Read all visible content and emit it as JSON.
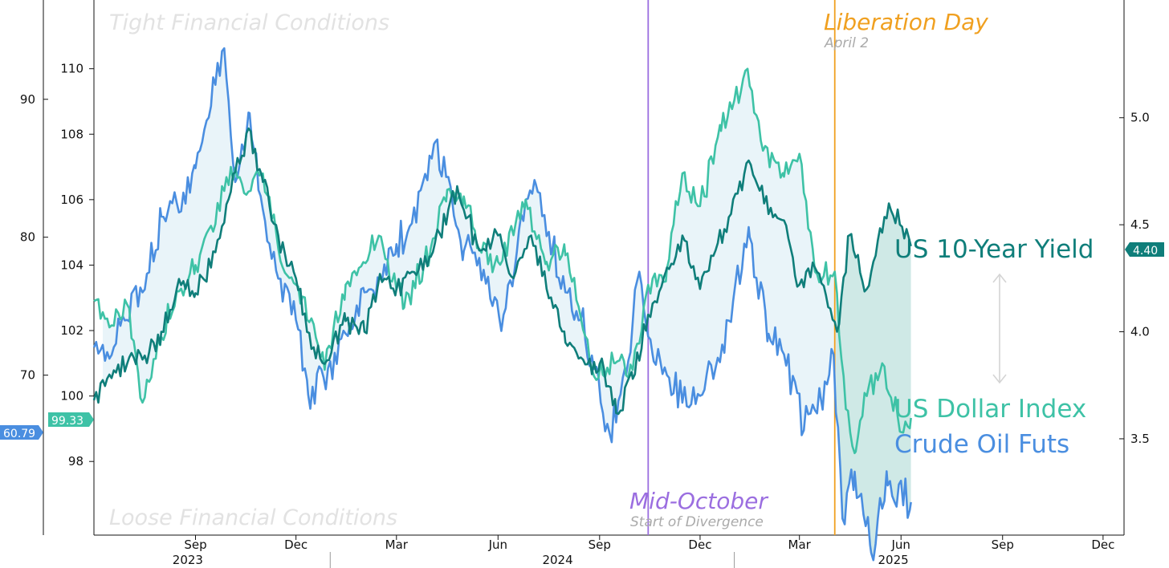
{
  "chart_data": {
    "type": "line",
    "title": "",
    "x_range": [
      "2023-06-01",
      "2025-12-20"
    ],
    "axes": {
      "left_outer": {
        "ticks": [
          70,
          80,
          90
        ],
        "ylim": [
          58.4,
          97.2
        ],
        "tick_labels": [
          "70",
          "80",
          "90"
        ]
      },
      "left_inner": {
        "ticks": [
          98,
          100,
          102,
          104,
          106,
          108,
          110
        ],
        "ylim": [
          95.75,
          112.1
        ],
        "tick_labels": [
          "98",
          "100",
          "102",
          "104",
          "106",
          "108",
          "110"
        ]
      },
      "right": {
        "ticks": [
          3.5,
          4.0,
          4.5,
          5.0
        ],
        "ylim": [
          3.05,
          5.55
        ],
        "tick_labels": [
          "3.5",
          "4.0",
          "4.5",
          "5.0"
        ]
      }
    },
    "x_months": [
      {
        "date": "2023-09-01",
        "label": "Sep"
      },
      {
        "date": "2023-12-01",
        "label": "Dec"
      },
      {
        "date": "2024-03-01",
        "label": "Mar"
      },
      {
        "date": "2024-06-01",
        "label": "Jun"
      },
      {
        "date": "2024-09-01",
        "label": "Sep"
      },
      {
        "date": "2024-12-01",
        "label": "Dec"
      },
      {
        "date": "2025-03-01",
        "label": "Mar"
      },
      {
        "date": "2025-06-01",
        "label": "Jun"
      },
      {
        "date": "2025-09-01",
        "label": "Sep"
      },
      {
        "date": "2025-12-01",
        "label": "Dec"
      }
    ],
    "x_years": [
      {
        "date": "2023-08-25",
        "label": "2023"
      },
      {
        "date": "2024-07-25",
        "label": "2024"
      },
      {
        "date": "2025-05-25",
        "label": "2025"
      }
    ],
    "year_separators": [
      "2024-01-01",
      "2025-01-01"
    ],
    "corner_labels": {
      "top": "Tight Financial Conditions",
      "bottom": "Loose Financial Conditions"
    },
    "events": [
      {
        "date": "2024-10-15",
        "title": "Mid-October",
        "subtitle": "Start of Divergence",
        "color": "#9b6ee0",
        "placement": "bottom"
      },
      {
        "date": "2025-04-02",
        "title": "Liberation Day",
        "subtitle": "April 2",
        "color": "#f0a020",
        "placement": "top"
      }
    ],
    "series": [
      {
        "name": "US 10-Year Yield",
        "axis": "right",
        "color": "#0f7e7a",
        "last": "4.40",
        "points": [
          [
            "2023-06-01",
            3.68
          ],
          [
            "2023-06-15",
            3.8
          ],
          [
            "2023-07-01",
            3.85
          ],
          [
            "2023-07-15",
            3.87
          ],
          [
            "2023-08-01",
            4.0
          ],
          [
            "2023-08-15",
            4.2
          ],
          [
            "2023-09-01",
            4.18
          ],
          [
            "2023-09-15",
            4.3
          ],
          [
            "2023-10-01",
            4.62
          ],
          [
            "2023-10-19",
            4.95
          ],
          [
            "2023-11-01",
            4.7
          ],
          [
            "2023-11-15",
            4.45
          ],
          [
            "2023-12-01",
            4.25
          ],
          [
            "2023-12-15",
            3.92
          ],
          [
            "2023-12-27",
            3.85
          ],
          [
            "2024-01-15",
            4.05
          ],
          [
            "2024-02-01",
            4.0
          ],
          [
            "2024-02-15",
            4.27
          ],
          [
            "2024-03-01",
            4.2
          ],
          [
            "2024-03-15",
            4.28
          ],
          [
            "2024-04-01",
            4.35
          ],
          [
            "2024-04-25",
            4.68
          ],
          [
            "2024-05-15",
            4.38
          ],
          [
            "2024-06-01",
            4.45
          ],
          [
            "2024-06-15",
            4.25
          ],
          [
            "2024-07-01",
            4.45
          ],
          [
            "2024-07-15",
            4.2
          ],
          [
            "2024-08-01",
            3.95
          ],
          [
            "2024-08-15",
            3.88
          ],
          [
            "2024-09-01",
            3.85
          ],
          [
            "2024-09-16",
            3.62
          ],
          [
            "2024-10-01",
            3.78
          ],
          [
            "2024-10-15",
            4.08
          ],
          [
            "2024-11-01",
            4.3
          ],
          [
            "2024-11-15",
            4.45
          ],
          [
            "2024-12-01",
            4.2
          ],
          [
            "2024-12-15",
            4.38
          ],
          [
            "2025-01-14",
            4.8
          ],
          [
            "2025-02-01",
            4.55
          ],
          [
            "2025-02-15",
            4.52
          ],
          [
            "2025-03-01",
            4.22
          ],
          [
            "2025-03-15",
            4.3
          ],
          [
            "2025-04-04",
            4.0
          ],
          [
            "2025-04-15",
            4.45
          ],
          [
            "2025-05-01",
            4.2
          ],
          [
            "2025-05-21",
            4.6
          ],
          [
            "2025-06-10",
            4.4
          ]
        ]
      },
      {
        "name": "US Dollar Index",
        "axis": "left_inner",
        "color": "#3ec2a6",
        "last": "99.33",
        "points": [
          [
            "2023-06-01",
            102.9
          ],
          [
            "2023-06-15",
            102.1
          ],
          [
            "2023-07-01",
            102.8
          ],
          [
            "2023-07-15",
            99.8
          ],
          [
            "2023-08-01",
            101.8
          ],
          [
            "2023-08-15",
            103.2
          ],
          [
            "2023-09-01",
            104.0
          ],
          [
            "2023-09-15",
            105.2
          ],
          [
            "2023-10-03",
            107.0
          ],
          [
            "2023-10-15",
            106.2
          ],
          [
            "2023-11-01",
            106.8
          ],
          [
            "2023-11-15",
            104.5
          ],
          [
            "2023-12-01",
            103.4
          ],
          [
            "2023-12-27",
            100.8
          ],
          [
            "2024-01-15",
            103.4
          ],
          [
            "2024-02-14",
            104.9
          ],
          [
            "2024-03-08",
            102.7
          ],
          [
            "2024-04-01",
            104.5
          ],
          [
            "2024-04-16",
            106.3
          ],
          [
            "2024-05-01",
            106.1
          ],
          [
            "2024-05-15",
            104.5
          ],
          [
            "2024-06-01",
            104.1
          ],
          [
            "2024-06-26",
            106.0
          ],
          [
            "2024-07-15",
            104.1
          ],
          [
            "2024-08-01",
            104.3
          ],
          [
            "2024-08-15",
            102.4
          ],
          [
            "2024-08-27",
            100.6
          ],
          [
            "2024-09-15",
            101.0
          ],
          [
            "2024-10-01",
            100.8
          ],
          [
            "2024-10-15",
            103.4
          ],
          [
            "2024-11-01",
            103.9
          ],
          [
            "2024-11-15",
            106.8
          ],
          [
            "2024-12-01",
            105.8
          ],
          [
            "2024-12-20",
            108.1
          ],
          [
            "2025-01-13",
            110.0
          ],
          [
            "2025-01-25",
            107.8
          ],
          [
            "2025-02-15",
            106.7
          ],
          [
            "2025-03-01",
            107.4
          ],
          [
            "2025-03-15",
            103.8
          ],
          [
            "2025-04-02",
            103.8
          ],
          [
            "2025-04-12",
            99.6
          ],
          [
            "2025-04-21",
            98.3
          ],
          [
            "2025-05-01",
            100.0
          ],
          [
            "2025-05-15",
            101.0
          ],
          [
            "2025-06-01",
            98.9
          ],
          [
            "2025-06-10",
            99.33
          ]
        ]
      },
      {
        "name": "Crude Oil Futs",
        "axis": "left_outer",
        "color": "#4a8ee0",
        "last": "60.79",
        "points": [
          [
            "2023-06-01",
            72.0
          ],
          [
            "2023-06-15",
            71.2
          ],
          [
            "2023-07-01",
            74.0
          ],
          [
            "2023-07-15",
            76.0
          ],
          [
            "2023-08-01",
            81.5
          ],
          [
            "2023-08-15",
            82.5
          ],
          [
            "2023-09-01",
            85.0
          ],
          [
            "2023-09-15",
            89.5
          ],
          [
            "2023-09-27",
            93.7
          ],
          [
            "2023-10-07",
            84.0
          ],
          [
            "2023-10-20",
            89.0
          ],
          [
            "2023-11-01",
            82.0
          ],
          [
            "2023-11-15",
            77.0
          ],
          [
            "2023-12-01",
            74.0
          ],
          [
            "2023-12-12",
            68.6
          ],
          [
            "2024-01-01",
            71.0
          ],
          [
            "2024-01-15",
            73.0
          ],
          [
            "2024-02-01",
            76.0
          ],
          [
            "2024-02-15",
            77.0
          ],
          [
            "2024-03-01",
            79.5
          ],
          [
            "2024-03-15",
            81.0
          ],
          [
            "2024-04-05",
            86.9
          ],
          [
            "2024-04-20",
            83.0
          ],
          [
            "2024-05-01",
            79.0
          ],
          [
            "2024-05-15",
            78.5
          ],
          [
            "2024-06-04",
            73.2
          ],
          [
            "2024-06-20",
            80.5
          ],
          [
            "2024-07-05",
            83.9
          ],
          [
            "2024-07-20",
            79.0
          ],
          [
            "2024-08-01",
            76.0
          ],
          [
            "2024-08-15",
            74.0
          ],
          [
            "2024-09-10",
            65.8
          ],
          [
            "2024-09-25",
            70.0
          ],
          [
            "2024-10-07",
            77.5
          ],
          [
            "2024-10-20",
            71.0
          ],
          [
            "2024-11-01",
            70.0
          ],
          [
            "2024-11-15",
            68.0
          ],
          [
            "2024-12-01",
            68.5
          ],
          [
            "2024-12-15",
            70.5
          ],
          [
            "2025-01-15",
            80.0
          ],
          [
            "2025-02-01",
            73.0
          ],
          [
            "2025-02-15",
            71.5
          ],
          [
            "2025-03-05",
            66.0
          ],
          [
            "2025-03-20",
            68.5
          ],
          [
            "2025-04-01",
            71.5
          ],
          [
            "2025-04-09",
            59.6
          ],
          [
            "2025-04-20",
            63.0
          ],
          [
            "2025-05-05",
            57.1
          ],
          [
            "2025-05-20",
            62.0
          ],
          [
            "2025-06-10",
            60.79
          ]
        ]
      }
    ]
  }
}
